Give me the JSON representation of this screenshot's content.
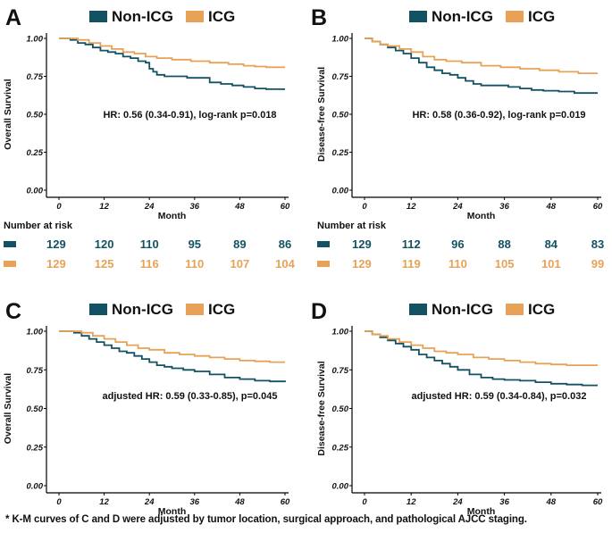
{
  "colors": {
    "non_icg": "#125263",
    "icg": "#E8A257",
    "axis": "#000000",
    "text": "#111111"
  },
  "legend": {
    "non_icg": "Non-ICG",
    "icg": "ICG"
  },
  "xticks": [
    "0",
    "12",
    "24",
    "36",
    "48",
    "60"
  ],
  "yticks": [
    "0.00",
    "0.25",
    "0.50",
    "0.75",
    "1.00"
  ],
  "xlabel": "Month",
  "chart_data": [
    {
      "panel": "A",
      "type": "line",
      "title": "A",
      "ylabel": "Overall Survival",
      "xlabel": "Month",
      "xlim": [
        0,
        60
      ],
      "ylim": [
        0,
        1
      ],
      "annotation": "HR: 0.56 (0.34-0.91), log-rank p=0.018",
      "series": [
        {
          "name": "Non-ICG",
          "x": [
            0,
            3,
            5,
            7,
            9,
            11,
            13,
            15,
            17,
            19,
            21,
            23,
            24,
            25,
            26,
            28,
            31,
            34,
            37,
            40,
            43,
            46,
            49,
            52,
            55,
            60
          ],
          "y": [
            1.0,
            0.99,
            0.97,
            0.96,
            0.94,
            0.92,
            0.91,
            0.9,
            0.88,
            0.87,
            0.85,
            0.84,
            0.8,
            0.78,
            0.76,
            0.75,
            0.75,
            0.74,
            0.74,
            0.71,
            0.7,
            0.69,
            0.68,
            0.67,
            0.665,
            0.665
          ]
        },
        {
          "name": "ICG",
          "x": [
            0,
            3,
            5,
            8,
            11,
            14,
            17,
            20,
            23,
            26,
            30,
            35,
            40,
            45,
            49,
            52,
            55,
            60
          ],
          "y": [
            1.0,
            1.0,
            0.99,
            0.97,
            0.95,
            0.93,
            0.91,
            0.9,
            0.88,
            0.87,
            0.86,
            0.85,
            0.84,
            0.83,
            0.82,
            0.815,
            0.81,
            0.81
          ]
        }
      ]
    },
    {
      "panel": "B",
      "type": "line",
      "title": "B",
      "ylabel": "Disease-free Survival",
      "xlabel": "Month",
      "xlim": [
        0,
        60
      ],
      "ylim": [
        0,
        1
      ],
      "annotation": "HR: 0.58 (0.36-0.92), log-rank p=0.019",
      "series": [
        {
          "name": "Non-ICG",
          "x": [
            0,
            2,
            4,
            6,
            8,
            10,
            12,
            14,
            16,
            18,
            20,
            22,
            24,
            26,
            28,
            30,
            33,
            37,
            40,
            43,
            46,
            50,
            54,
            60
          ],
          "y": [
            1.0,
            0.98,
            0.96,
            0.94,
            0.92,
            0.9,
            0.87,
            0.84,
            0.81,
            0.79,
            0.77,
            0.76,
            0.74,
            0.72,
            0.7,
            0.69,
            0.69,
            0.68,
            0.67,
            0.66,
            0.655,
            0.65,
            0.64,
            0.64
          ]
        },
        {
          "name": "ICG",
          "x": [
            0,
            2,
            4,
            6,
            9,
            12,
            15,
            18,
            21,
            25,
            30,
            35,
            40,
            45,
            50,
            55,
            60
          ],
          "y": [
            1.0,
            0.98,
            0.96,
            0.95,
            0.93,
            0.91,
            0.88,
            0.86,
            0.85,
            0.84,
            0.82,
            0.81,
            0.8,
            0.79,
            0.78,
            0.77,
            0.77
          ]
        }
      ]
    },
    {
      "panel": "C",
      "type": "line",
      "title": "C",
      "ylabel": "Overall Survival",
      "xlabel": "Month",
      "xlim": [
        0,
        60
      ],
      "ylim": [
        0,
        1
      ],
      "annotation": "adjusted HR: 0.59 (0.33-0.85), p=0.045",
      "series": [
        {
          "name": "Non-ICG",
          "x": [
            0,
            4,
            6,
            8,
            10,
            12,
            14,
            16,
            18,
            20,
            22,
            24,
            26,
            28,
            30,
            33,
            36,
            40,
            44,
            48,
            52,
            56,
            60
          ],
          "y": [
            1.0,
            0.99,
            0.97,
            0.95,
            0.93,
            0.91,
            0.89,
            0.87,
            0.86,
            0.84,
            0.82,
            0.8,
            0.78,
            0.77,
            0.76,
            0.75,
            0.74,
            0.72,
            0.7,
            0.69,
            0.68,
            0.675,
            0.67
          ]
        },
        {
          "name": "ICG",
          "x": [
            0,
            4,
            6,
            9,
            12,
            15,
            18,
            21,
            24,
            28,
            32,
            36,
            40,
            44,
            48,
            52,
            56,
            60
          ],
          "y": [
            1.0,
            1.0,
            0.99,
            0.97,
            0.95,
            0.93,
            0.91,
            0.89,
            0.88,
            0.86,
            0.85,
            0.84,
            0.83,
            0.82,
            0.81,
            0.805,
            0.8,
            0.8
          ]
        }
      ]
    },
    {
      "panel": "D",
      "type": "line",
      "title": "D",
      "ylabel": "Disease-free Survival",
      "xlabel": "Month",
      "xlim": [
        0,
        60
      ],
      "ylim": [
        0,
        1
      ],
      "annotation": "adjusted HR: 0.59 (0.34-0.84), p=0.032",
      "series": [
        {
          "name": "Non-ICG",
          "x": [
            0,
            2,
            4,
            6,
            8,
            10,
            12,
            14,
            16,
            18,
            20,
            22,
            24,
            27,
            30,
            33,
            36,
            40,
            44,
            48,
            52,
            56,
            60
          ],
          "y": [
            1.0,
            0.98,
            0.96,
            0.94,
            0.92,
            0.9,
            0.88,
            0.85,
            0.83,
            0.81,
            0.79,
            0.77,
            0.75,
            0.72,
            0.7,
            0.69,
            0.685,
            0.68,
            0.67,
            0.66,
            0.655,
            0.65,
            0.65
          ]
        },
        {
          "name": "ICG",
          "x": [
            0,
            2,
            4,
            6,
            9,
            12,
            15,
            18,
            21,
            24,
            28,
            32,
            36,
            40,
            44,
            48,
            52,
            56,
            60
          ],
          "y": [
            1.0,
            0.98,
            0.97,
            0.95,
            0.93,
            0.91,
            0.89,
            0.87,
            0.86,
            0.85,
            0.83,
            0.82,
            0.81,
            0.8,
            0.79,
            0.785,
            0.78,
            0.78,
            0.78
          ]
        }
      ]
    }
  ],
  "risk_tables": [
    {
      "panel": "A",
      "title": "Number at risk",
      "non_icg": [
        "129",
        "120",
        "110",
        "95",
        "89",
        "86"
      ],
      "icg": [
        "129",
        "125",
        "116",
        "110",
        "107",
        "104"
      ]
    },
    {
      "panel": "B",
      "title": "Number at risk",
      "non_icg": [
        "129",
        "112",
        "96",
        "88",
        "84",
        "83"
      ],
      "icg": [
        "129",
        "119",
        "110",
        "105",
        "101",
        "99"
      ]
    }
  ],
  "footnote": "* K-M curves of C and D were adjusted by tumor location, surgical approach, and pathological AJCC staging."
}
